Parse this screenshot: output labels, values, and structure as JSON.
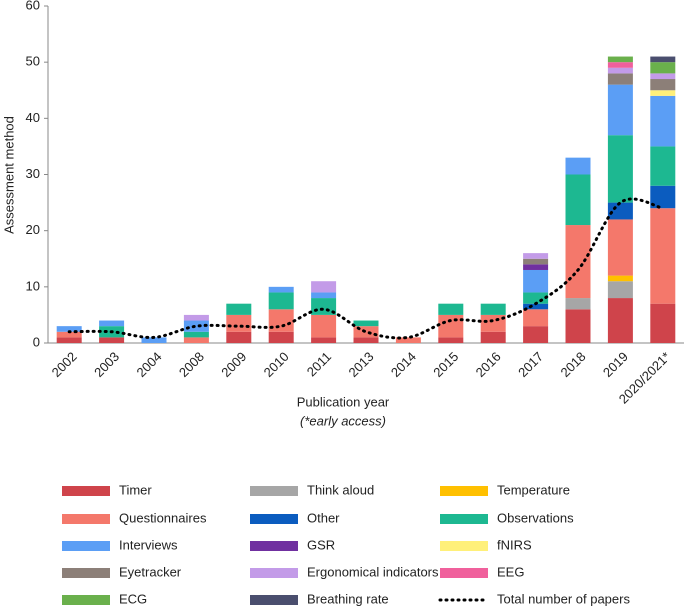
{
  "chart_data": {
    "type": "stacked-bar",
    "categories": [
      "2002",
      "2003",
      "2004",
      "2008",
      "2009",
      "2010",
      "2011",
      "2013",
      "2014",
      "2015",
      "2016",
      "2017",
      "2018",
      "2019",
      "2020/2021*"
    ],
    "series": [
      {
        "name": "Timer",
        "color": "#cf444b",
        "values": [
          1,
          1,
          0,
          0,
          2,
          2,
          1,
          1,
          0,
          1,
          2,
          3,
          6,
          8,
          7
        ]
      },
      {
        "name": "Think aloud",
        "color": "#a6a6a6",
        "values": [
          0,
          0,
          0,
          0,
          0,
          0,
          0,
          0,
          0,
          0,
          0,
          0,
          2,
          3,
          0
        ]
      },
      {
        "name": "Temperature",
        "color": "#ffc000",
        "values": [
          0,
          0,
          0,
          0,
          0,
          0,
          0,
          0,
          0,
          0,
          0,
          0,
          0,
          1,
          0
        ]
      },
      {
        "name": "Questionnaires",
        "color": "#f4786b",
        "values": [
          1,
          0,
          0,
          1,
          3,
          4,
          4,
          2,
          1,
          4,
          3,
          3,
          13,
          10,
          17
        ]
      },
      {
        "name": "Other",
        "color": "#0b5cbf",
        "values": [
          0,
          0,
          0,
          0,
          0,
          0,
          0,
          0,
          0,
          0,
          0,
          1,
          0,
          3,
          4
        ]
      },
      {
        "name": "Observations",
        "color": "#1db891",
        "values": [
          0,
          2,
          0,
          1,
          2,
          3,
          3,
          1,
          0,
          2,
          2,
          2,
          9,
          12,
          7
        ]
      },
      {
        "name": "Interviews",
        "color": "#5b9ef5",
        "values": [
          1,
          1,
          1,
          2,
          0,
          1,
          1,
          0,
          0,
          0,
          0,
          4,
          3,
          9,
          9
        ]
      },
      {
        "name": "GSR",
        "color": "#7030a0",
        "values": [
          0,
          0,
          0,
          0,
          0,
          0,
          0,
          0,
          0,
          0,
          0,
          1,
          0,
          0,
          0
        ]
      },
      {
        "name": "fNIRS",
        "color": "#fff07a",
        "values": [
          0,
          0,
          0,
          0,
          0,
          0,
          0,
          0,
          0,
          0,
          0,
          0,
          0,
          0,
          1
        ]
      },
      {
        "name": "Eyetracker",
        "color": "#8c7f78",
        "values": [
          0,
          0,
          0,
          0,
          0,
          0,
          0,
          0,
          0,
          0,
          0,
          1,
          0,
          2,
          2
        ]
      },
      {
        "name": "Ergonomical indicators",
        "color": "#c39be8",
        "values": [
          0,
          0,
          0,
          1,
          0,
          0,
          2,
          0,
          0,
          0,
          0,
          1,
          0,
          1,
          1
        ]
      },
      {
        "name": "EEG",
        "color": "#f0609c",
        "values": [
          0,
          0,
          0,
          0,
          0,
          0,
          0,
          0,
          0,
          0,
          0,
          0,
          0,
          1,
          0
        ]
      },
      {
        "name": "ECG",
        "color": "#6ab04c",
        "values": [
          0,
          0,
          0,
          0,
          0,
          0,
          0,
          0,
          0,
          0,
          0,
          0,
          0,
          1,
          2
        ]
      },
      {
        "name": "Breathing rate",
        "color": "#4a4e6e",
        "values": [
          0,
          0,
          0,
          0,
          0,
          0,
          0,
          0,
          0,
          0,
          0,
          0,
          0,
          0,
          1
        ]
      }
    ],
    "line_series": {
      "name": "Total number of papers",
      "color": "#000000",
      "values": [
        2,
        2,
        1,
        3,
        3,
        3,
        6,
        2,
        1,
        4,
        4,
        7,
        13,
        25,
        24
      ]
    },
    "x_label": "Publication year",
    "x_label_note": "(*early access)",
    "y_label": "Assessment method",
    "ylim": [
      0,
      60
    ],
    "yticks": [
      0,
      10,
      20,
      30,
      40,
      50,
      60
    ],
    "grid": false
  }
}
